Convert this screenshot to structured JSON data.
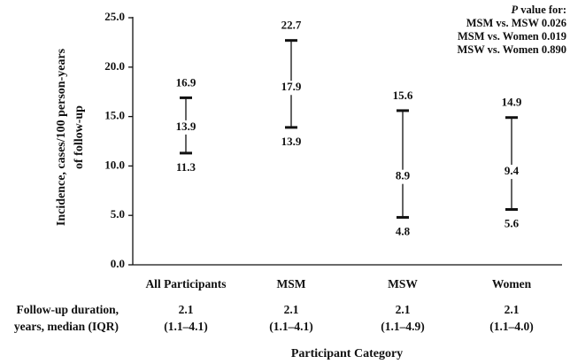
{
  "chart_data": {
    "type": "error-range",
    "ylabel": "Incidence, cases/100 person-years of follow-up",
    "ylabel_lines": [
      "Incidence, cases/100 person-years",
      "of follow-up"
    ],
    "xlabel": "Participant Category",
    "ylim": [
      0,
      25
    ],
    "yticks": [
      "0.0",
      "5.0",
      "10.0",
      "15.0",
      "20.0",
      "25.0"
    ],
    "ytick_values": [
      0,
      5,
      10,
      15,
      20,
      25
    ],
    "grid": false,
    "categories": [
      "All Participants",
      "MSM",
      "MSW",
      "Women"
    ],
    "series": [
      {
        "lower": [
          11.3,
          13.9,
          4.8,
          5.6
        ],
        "estimate": [
          13.9,
          17.9,
          8.9,
          9.4
        ],
        "upper": [
          16.9,
          22.7,
          15.6,
          14.9
        ],
        "lower_labels": [
          "11.3",
          "13.9",
          "4.8",
          "5.6"
        ],
        "estimate_labels": [
          "13.9",
          "17.9",
          "8.9",
          "9.4"
        ],
        "upper_labels": [
          "16.9",
          "22.7",
          "15.6",
          "14.9"
        ]
      }
    ],
    "annotation": {
      "title_italic": "P",
      "title_rest": " value for:",
      "lines": [
        "MSM vs. MSW 0.026",
        "MSM vs. Women 0.019",
        "MSW vs. Women 0.890"
      ]
    }
  },
  "followup": {
    "header_line1": "Follow-up duration,",
    "header_line2": "years, median (IQR)",
    "medians": [
      "2.1",
      "2.1",
      "2.1",
      "2.1"
    ],
    "iqrs": [
      "(1.1–4.1)",
      "(1.1–4.1)",
      "(1.1–4.9)",
      "(1.1–4.0)"
    ]
  },
  "colors": {
    "ink": "#111111",
    "background": "#ffffff"
  }
}
